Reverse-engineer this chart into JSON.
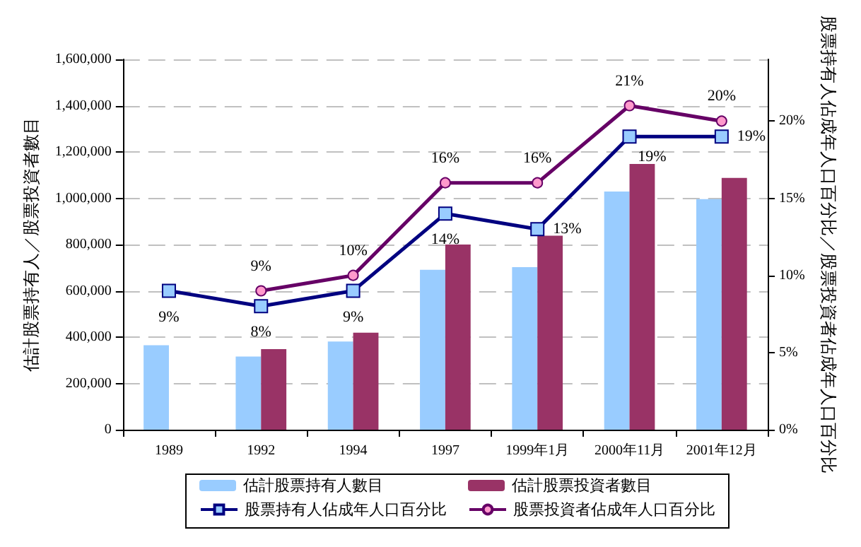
{
  "chart_data": {
    "type": "bar",
    "categories": [
      "1989",
      "1992",
      "1994",
      "1997",
      "1999年1月",
      "2000年11月",
      "2001年12月"
    ],
    "ylabel": "估計股票持有人／股票投資者數目",
    "y2label": "股票持有人佔成年人口百分比／股票投資者佔成年人口百分比",
    "series": [
      {
        "name": "估計股票持有人數目",
        "color": "#99ccff",
        "values": [
          365000,
          316000,
          381000,
          691000,
          702000,
          1029000,
          996000
        ]
      },
      {
        "name": "估計股票投資者數目",
        "color": "#993366",
        "values": [
          null,
          348000,
          419000,
          800000,
          838000,
          1148000,
          1088000
        ]
      },
      {
        "name": "股票持有人佔成年人口百分比",
        "type": "line",
        "axis": "y2",
        "color": "#000080",
        "marker": "square",
        "values": [
          9,
          8,
          9,
          14,
          13,
          19,
          19
        ],
        "value_labels": [
          "9%",
          "8%",
          "9%",
          "14%",
          "13%",
          "19%",
          "19%"
        ]
      },
      {
        "name": "股票投資者佔成年人口百分比",
        "type": "line",
        "axis": "y2",
        "color": "#660066",
        "marker": "circle",
        "values": [
          null,
          9,
          10,
          16,
          16,
          21,
          20
        ],
        "value_labels": [
          null,
          "9%",
          "10%",
          "16%",
          "16%",
          "21%",
          "20%"
        ]
      }
    ],
    "ylim": [
      0,
      1600000
    ],
    "yticks": [
      0,
      {
        "value": 200000,
        "label": "200,000"
      },
      {
        "value": 400000,
        "label": "400,000"
      },
      {
        "value": 600000,
        "label": "600,000"
      },
      {
        "value": 800000,
        "label": "800,000"
      },
      {
        "value": 1000000,
        "label": "1,000,000"
      },
      {
        "value": 1200000,
        "label": "1,200,000"
      },
      {
        "value": 1400000,
        "label": "1,400,000"
      },
      {
        "value": 1600000,
        "label": "1,600,000"
      }
    ],
    "y2lim": [
      0,
      24
    ],
    "y2ticks": [
      {
        "value": 0,
        "label": "0%"
      },
      {
        "value": 5,
        "label": "5%"
      },
      {
        "value": 10,
        "label": "10%"
      },
      {
        "value": 15,
        "label": "15%"
      },
      {
        "value": 20,
        "label": "20%"
      }
    ],
    "grid": "y",
    "legend": "bottom"
  }
}
